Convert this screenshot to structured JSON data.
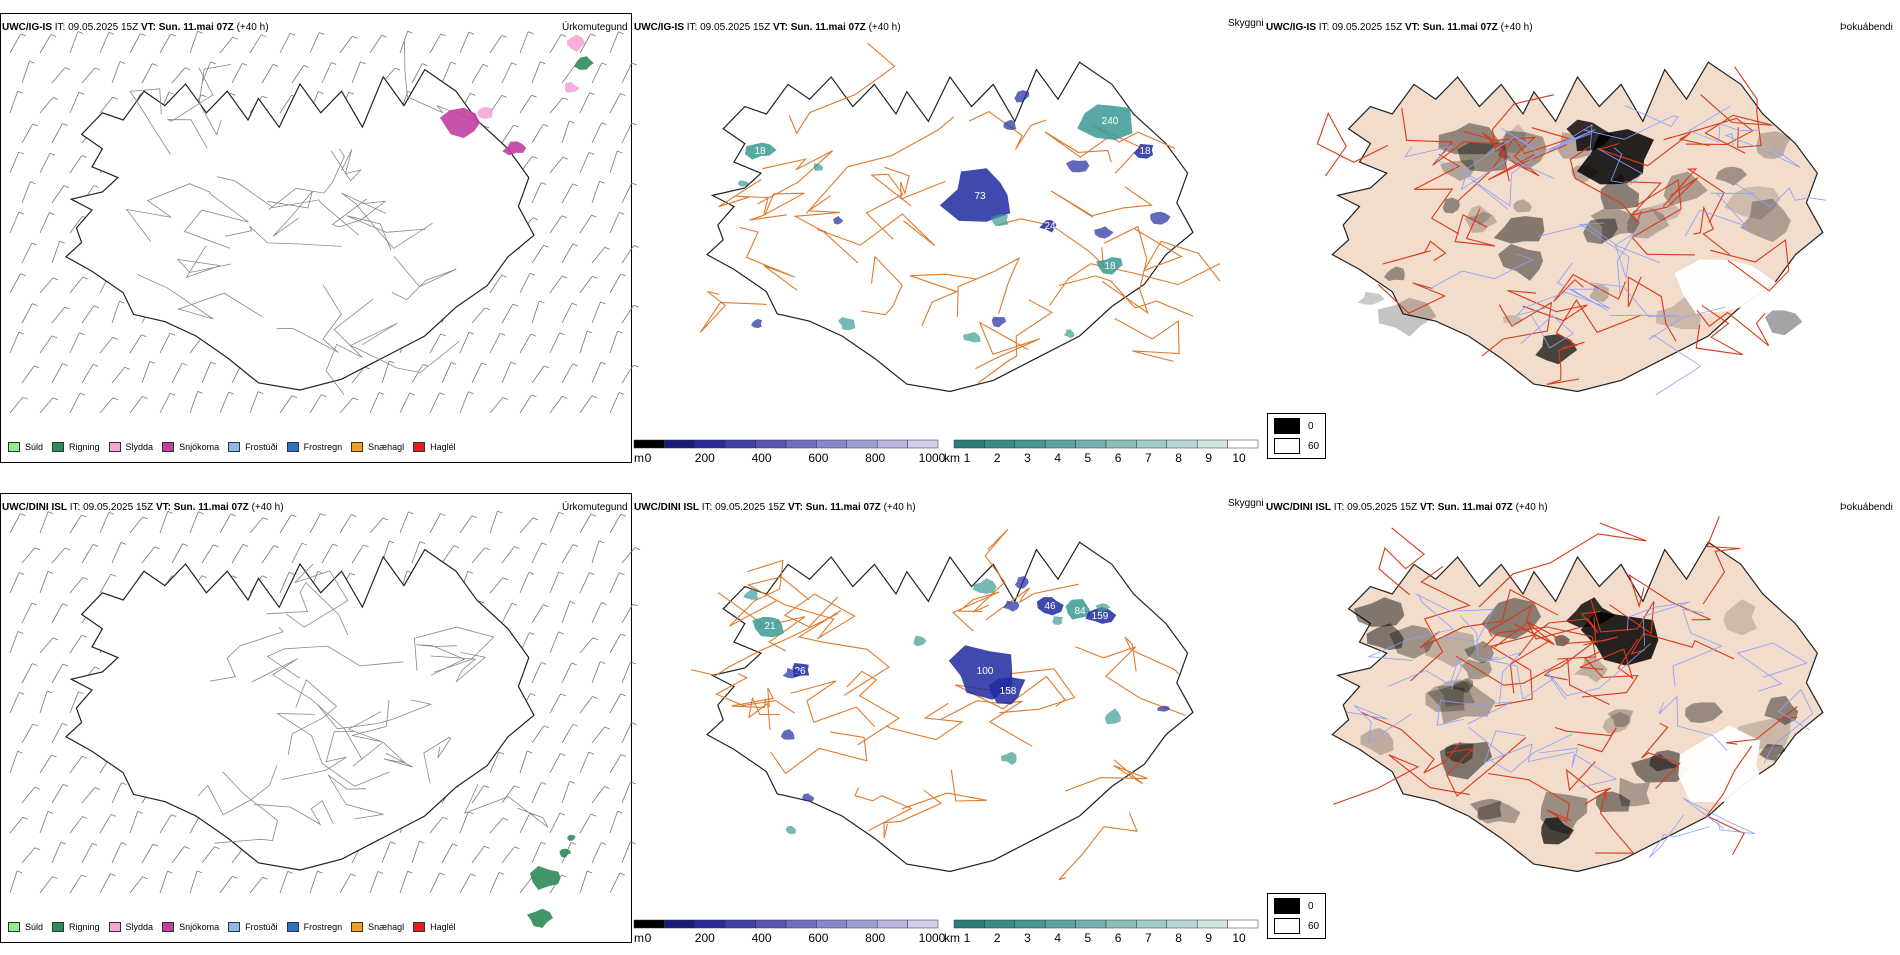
{
  "panels": {
    "ig_precip": {
      "model": "UWC/IG-IS",
      "it": "IT: 09.05.2025 15Z",
      "vt_label": "VT:",
      "vt": "Sun. 11.mai 07Z",
      "lead": "(+40 h)",
      "name": "Úrkomutegund"
    },
    "ig_cloud": {
      "model": "UWC/IG-IS",
      "it": "IT: 09.05.2025 15Z",
      "vt_label": "VT:",
      "vt": "Sun. 11.mai 07Z",
      "lead": "(+40 h)",
      "name": "Skyggni"
    },
    "ig_fog": {
      "model": "UWC/IG-IS",
      "it": "IT: 09.05.2025 15Z",
      "vt_label": "VT:",
      "vt": "Sun. 11.mai 07Z",
      "lead": "(+40 h)",
      "name": "Þokuábendi"
    },
    "dini_precip": {
      "model": "UWC/DINI ISL",
      "it": "IT: 09.05.2025 15Z",
      "vt_label": "VT:",
      "vt": "Sun. 11.mai 07Z",
      "lead": "(+40 h)",
      "name": "Úrkomutegund"
    },
    "dini_cloud": {
      "model": "UWC/DINI ISL",
      "it": "IT: 09.05.2025 15Z",
      "vt_label": "VT:",
      "vt": "Sun. 11.mai 07Z",
      "lead": "(+40 h)",
      "name": "Skyggni"
    },
    "dini_fog": {
      "model": "UWC/DINI ISL",
      "it": "IT: 09.05.2025 15Z",
      "vt_label": "VT:",
      "vt": "Sun. 11.mai 07Z",
      "lead": "(+40 h)",
      "name": "Þokuábendi"
    }
  },
  "precip_legend": [
    {
      "label": "Súld",
      "color": "#90ee90"
    },
    {
      "label": "Rigning",
      "color": "#2e8b57"
    },
    {
      "label": "Slydda",
      "color": "#f4a6d7"
    },
    {
      "label": "Snjókoma",
      "color": "#c040a0"
    },
    {
      "label": "Frostúði",
      "color": "#8fb8f0"
    },
    {
      "label": "Frostregn",
      "color": "#3070c0"
    },
    {
      "label": "Snæhagl",
      "color": "#f0a020"
    },
    {
      "label": "Haglél",
      "color": "#e02020"
    }
  ],
  "ceiling_bar": {
    "unit": "m",
    "ticks": [
      "0",
      "200",
      "400",
      "600",
      "800",
      "1000"
    ],
    "colors": [
      "#000000",
      "#1a1a7a",
      "#2a2a9a",
      "#4040a8",
      "#5858b4",
      "#7070c0",
      "#8888cc",
      "#a0a0d6",
      "#b8b8e0",
      "#d0d0ea"
    ]
  },
  "visibility_bar": {
    "unit": "km",
    "ticks": [
      "1",
      "2",
      "3",
      "4",
      "5",
      "6",
      "7",
      "8",
      "9",
      "10"
    ],
    "colors": [
      "#2a7d78",
      "#3a8a85",
      "#4a9792",
      "#5ea4a0",
      "#74b1ae",
      "#8abebb",
      "#a0cbc8",
      "#b8d8d6",
      "#d0e6e4",
      "#ffffff"
    ]
  },
  "fog_legend": [
    {
      "label": "0",
      "color": "#000000"
    },
    {
      "label": "60",
      "color": "#ffffff"
    }
  ],
  "ig_cloud_labels": [
    "73",
    "240",
    "18",
    "24",
    "18",
    "18"
  ],
  "dini_cloud_labels": [
    "100",
    "158",
    "46",
    "84",
    "159",
    "21",
    "26"
  ],
  "colors": {
    "roads": "#e07a2a",
    "roads_fog": "#d83a1a",
    "rivers": "#8aa0ff",
    "land_fog": "#f2dccb",
    "ceiling": "#1e2aa0",
    "vis": "#3a9a94",
    "snow": "#c040a0",
    "sleet": "#f4a6d7",
    "rain": "#2e8b57"
  }
}
